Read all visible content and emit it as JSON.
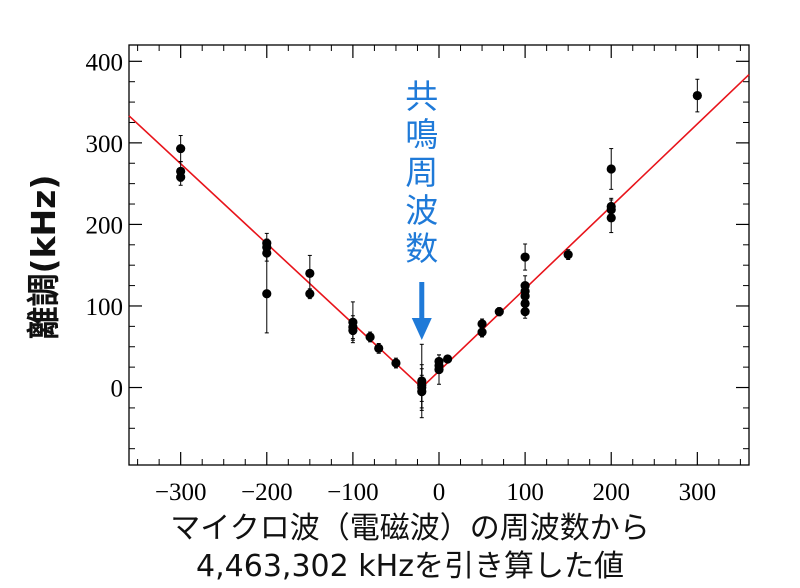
{
  "chart_data": {
    "type": "scatter",
    "xlabel_lines": [
      "マイクロ波（電磁波）の周波数から",
      "4,463,302 kHzを引き算した値"
    ],
    "ylabel": "離調(kHz)",
    "xlim": [
      -360,
      360
    ],
    "ylim": [
      -95,
      420
    ],
    "x_ticks": [
      -300,
      -200,
      -100,
      0,
      100,
      200,
      300
    ],
    "x_tick_labels": [
      "−300",
      "−200",
      "−100",
      "0",
      "100",
      "200",
      "300"
    ],
    "y_ticks": [
      0,
      100,
      200,
      300,
      400
    ],
    "y_tick_labels": [
      "0",
      "100",
      "200",
      "300",
      "400"
    ],
    "annotation": {
      "text": [
        "共",
        "鳴",
        "周",
        "波",
        "数"
      ],
      "x": -20,
      "color": "#1f7ad8"
    },
    "fit": {
      "vertex": -20,
      "slope_left": -0.98,
      "slope_right": 1.01,
      "color": "#e8141b"
    },
    "points": [
      {
        "x": -300,
        "y": 293,
        "err": 16
      },
      {
        "x": -300,
        "y": 265,
        "err": 12
      },
      {
        "x": -300,
        "y": 258,
        "err": 10
      },
      {
        "x": -200,
        "y": 177,
        "err": 12
      },
      {
        "x": -200,
        "y": 172,
        "err": 10
      },
      {
        "x": -200,
        "y": 165,
        "err": 10
      },
      {
        "x": -200,
        "y": 115,
        "err": 48
      },
      {
        "x": -150,
        "y": 140,
        "err": 22
      },
      {
        "x": -150,
        "y": 115,
        "err": 6
      },
      {
        "x": -100,
        "y": 80,
        "err": 25
      },
      {
        "x": -100,
        "y": 74,
        "err": 14
      },
      {
        "x": -100,
        "y": 70,
        "err": 12
      },
      {
        "x": -80,
        "y": 62,
        "err": 6
      },
      {
        "x": -70,
        "y": 48,
        "err": 6
      },
      {
        "x": -50,
        "y": 30,
        "err": 6
      },
      {
        "x": -20,
        "y": 8,
        "err": 45
      },
      {
        "x": -20,
        "y": 3,
        "err": 20
      },
      {
        "x": -20,
        "y": 0,
        "err": 28
      },
      {
        "x": -20,
        "y": -5,
        "err": 20
      },
      {
        "x": 0,
        "y": 32,
        "err": 8
      },
      {
        "x": 0,
        "y": 27,
        "err": 8
      },
      {
        "x": 0,
        "y": 22,
        "err": 18
      },
      {
        "x": 10,
        "y": 35,
        "err": 4
      },
      {
        "x": 50,
        "y": 78,
        "err": 6
      },
      {
        "x": 50,
        "y": 68,
        "err": 6
      },
      {
        "x": 70,
        "y": 93,
        "err": 5
      },
      {
        "x": 100,
        "y": 160,
        "err": 16
      },
      {
        "x": 100,
        "y": 125,
        "err": 12
      },
      {
        "x": 100,
        "y": 118,
        "err": 10
      },
      {
        "x": 100,
        "y": 112,
        "err": 10
      },
      {
        "x": 100,
        "y": 103,
        "err": 10
      },
      {
        "x": 100,
        "y": 93,
        "err": 8
      },
      {
        "x": 150,
        "y": 163,
        "err": 6
      },
      {
        "x": 200,
        "y": 268,
        "err": 25
      },
      {
        "x": 200,
        "y": 222,
        "err": 10
      },
      {
        "x": 200,
        "y": 218,
        "err": 12
      },
      {
        "x": 200,
        "y": 208,
        "err": 18
      },
      {
        "x": 300,
        "y": 358,
        "err": 20
      }
    ]
  }
}
